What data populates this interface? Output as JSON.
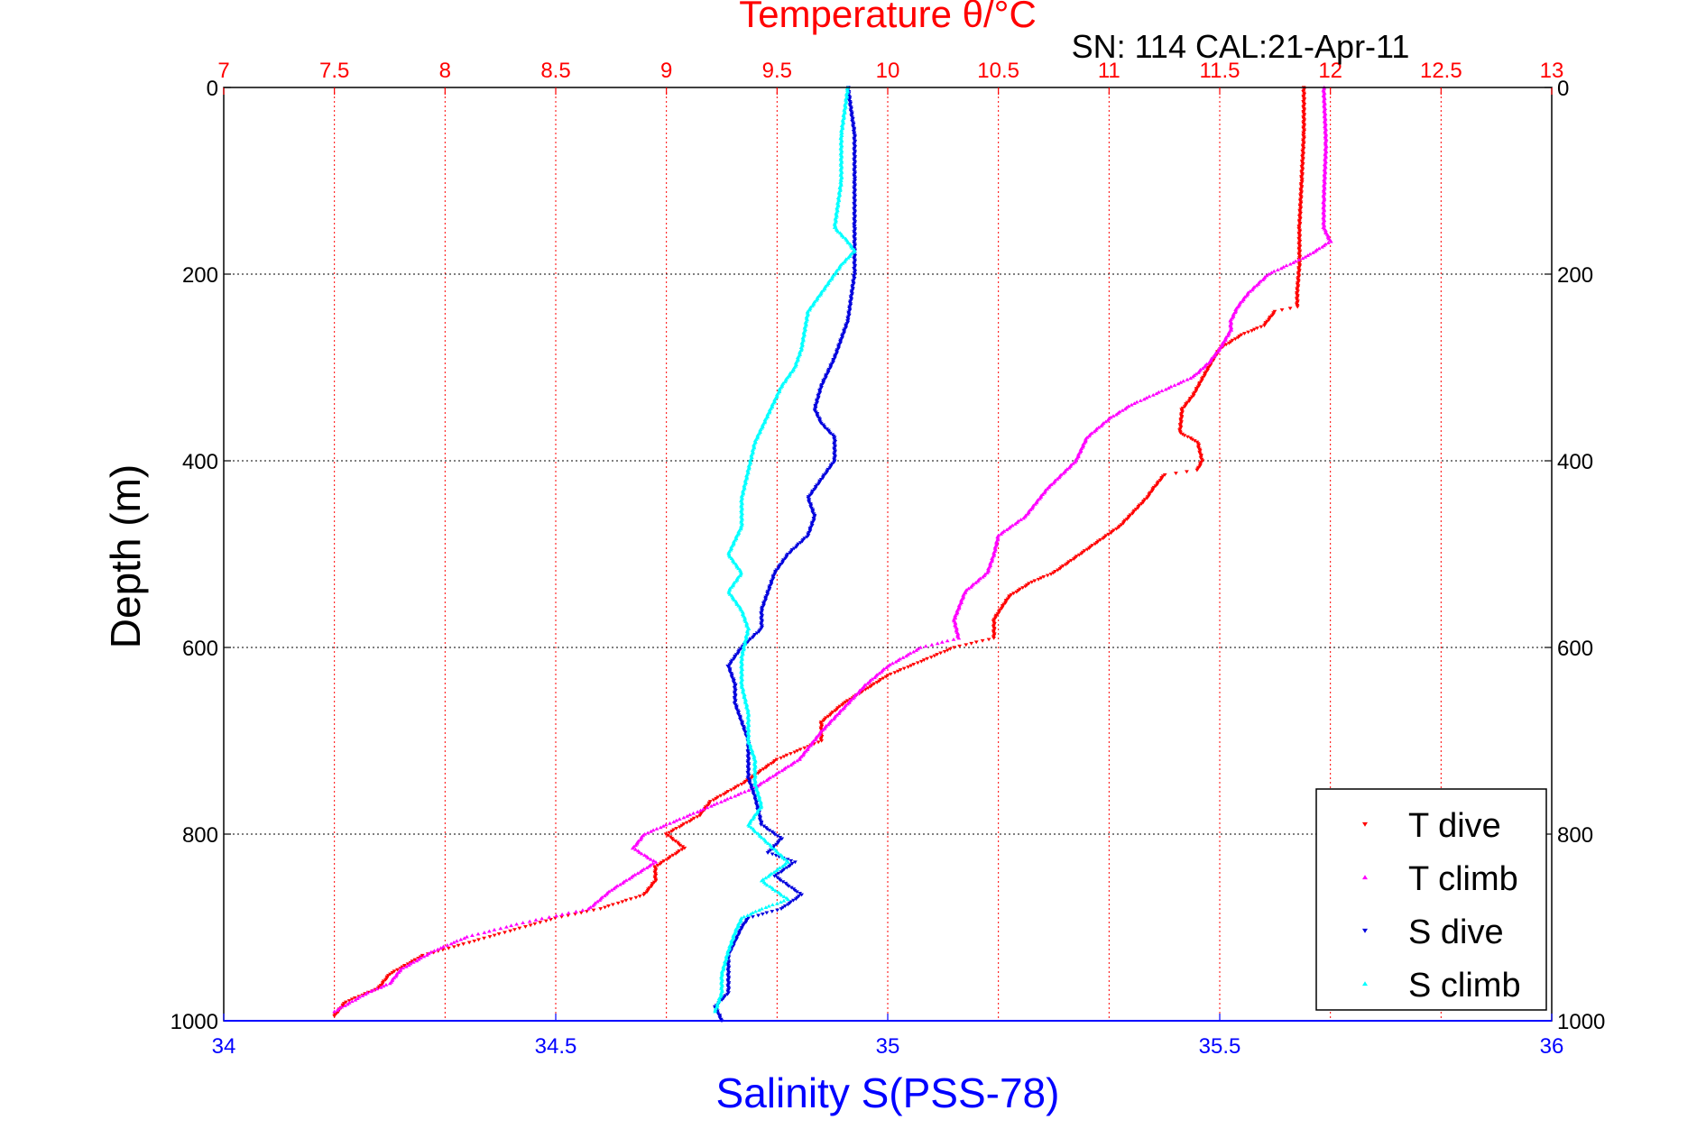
{
  "chart_data": {
    "type": "scatter",
    "top_axis_title": "Temperature θ/°C",
    "subtitle": "SN: 114  CAL:21-Apr-11",
    "ylabel": "Depth (m)",
    "xlabel": "Salinity S(PSS-78)",
    "top_axis": {
      "lim": [
        7,
        13
      ],
      "ticks": [
        7,
        7.5,
        8,
        8.5,
        9,
        9.5,
        10,
        10.5,
        11,
        11.5,
        12,
        12.5,
        13
      ],
      "tick_labels": [
        "7",
        "7.5",
        "8",
        "8.5",
        "9",
        "9.5",
        "10",
        "10.5",
        "11",
        "11.5",
        "12",
        "12.5",
        "13"
      ]
    },
    "bottom_axis": {
      "lim": [
        34,
        36
      ],
      "ticks": [
        34,
        34.5,
        35,
        35.5,
        36
      ],
      "tick_labels": [
        "34",
        "34.5",
        "35",
        "35.5",
        "36"
      ]
    },
    "y_axis": {
      "lim": [
        0,
        1000
      ],
      "reversed": true,
      "ticks": [
        0,
        200,
        400,
        600,
        800,
        1000
      ],
      "tick_labels": [
        "0",
        "200",
        "400",
        "600",
        "800",
        "1000"
      ]
    },
    "grid": true,
    "legend_position": "bottom-right",
    "series": [
      {
        "name": "T dive",
        "axis": "temperature",
        "color": "#ff0000",
        "marker": "triangle-down",
        "points": [
          [
            11.88,
            0
          ],
          [
            11.88,
            50
          ],
          [
            11.87,
            100
          ],
          [
            11.86,
            150
          ],
          [
            11.86,
            190
          ],
          [
            11.85,
            220
          ],
          [
            11.85,
            235
          ],
          [
            11.75,
            240
          ],
          [
            11.7,
            255
          ],
          [
            11.6,
            265
          ],
          [
            11.5,
            280
          ],
          [
            11.45,
            300
          ],
          [
            11.38,
            330
          ],
          [
            11.33,
            345
          ],
          [
            11.32,
            370
          ],
          [
            11.4,
            380
          ],
          [
            11.42,
            400
          ],
          [
            11.4,
            410
          ],
          [
            11.25,
            415
          ],
          [
            11.2,
            430
          ],
          [
            11.17,
            440
          ],
          [
            11.05,
            470
          ],
          [
            10.9,
            495
          ],
          [
            10.75,
            520
          ],
          [
            10.65,
            530
          ],
          [
            10.55,
            545
          ],
          [
            10.48,
            570
          ],
          [
            10.48,
            590
          ],
          [
            10.3,
            600
          ],
          [
            10.0,
            630
          ],
          [
            9.9,
            645
          ],
          [
            9.8,
            660
          ],
          [
            9.7,
            680
          ],
          [
            9.7,
            700
          ],
          [
            9.5,
            720
          ],
          [
            9.35,
            745
          ],
          [
            9.2,
            765
          ],
          [
            9.15,
            780
          ],
          [
            9.0,
            800
          ],
          [
            9.08,
            815
          ],
          [
            8.95,
            835
          ],
          [
            8.95,
            850
          ],
          [
            8.9,
            865
          ],
          [
            8.7,
            880
          ],
          [
            8.5,
            890
          ],
          [
            8.2,
            910
          ],
          [
            7.9,
            930
          ],
          [
            7.75,
            950
          ],
          [
            7.7,
            965
          ],
          [
            7.55,
            980
          ],
          [
            7.5,
            995
          ]
        ]
      },
      {
        "name": "T climb",
        "axis": "temperature",
        "color": "#ff00ff",
        "marker": "triangle-up",
        "points": [
          [
            11.97,
            0
          ],
          [
            11.98,
            60
          ],
          [
            11.97,
            120
          ],
          [
            11.97,
            150
          ],
          [
            12.0,
            165
          ],
          [
            11.9,
            180
          ],
          [
            11.72,
            200
          ],
          [
            11.63,
            220
          ],
          [
            11.58,
            235
          ],
          [
            11.55,
            250
          ],
          [
            11.55,
            260
          ],
          [
            11.5,
            280
          ],
          [
            11.45,
            295
          ],
          [
            11.38,
            310
          ],
          [
            11.1,
            340
          ],
          [
            11.0,
            355
          ],
          [
            10.9,
            375
          ],
          [
            10.85,
            400
          ],
          [
            10.72,
            430
          ],
          [
            10.62,
            460
          ],
          [
            10.5,
            480
          ],
          [
            10.48,
            500
          ],
          [
            10.45,
            520
          ],
          [
            10.35,
            540
          ],
          [
            10.3,
            570
          ],
          [
            10.32,
            590
          ],
          [
            10.15,
            600
          ],
          [
            10.0,
            620
          ],
          [
            9.9,
            640
          ],
          [
            9.8,
            665
          ],
          [
            9.7,
            690
          ],
          [
            9.6,
            720
          ],
          [
            9.4,
            750
          ],
          [
            9.2,
            770
          ],
          [
            9.0,
            790
          ],
          [
            8.9,
            800
          ],
          [
            8.85,
            815
          ],
          [
            8.95,
            830
          ],
          [
            8.85,
            845
          ],
          [
            8.75,
            860
          ],
          [
            8.65,
            880
          ],
          [
            8.35,
            895
          ],
          [
            8.1,
            910
          ],
          [
            7.95,
            925
          ],
          [
            7.8,
            945
          ],
          [
            7.75,
            960
          ],
          [
            7.65,
            970
          ],
          [
            7.5,
            990
          ]
        ]
      },
      {
        "name": "S dive",
        "axis": "salinity",
        "color": "#0000dd",
        "marker": "triangle-down",
        "points": [
          [
            34.94,
            0
          ],
          [
            34.95,
            50
          ],
          [
            34.95,
            100
          ],
          [
            34.95,
            150
          ],
          [
            34.95,
            200
          ],
          [
            34.94,
            250
          ],
          [
            34.92,
            290
          ],
          [
            34.9,
            320
          ],
          [
            34.89,
            345
          ],
          [
            34.9,
            360
          ],
          [
            34.92,
            375
          ],
          [
            34.92,
            400
          ],
          [
            34.9,
            420
          ],
          [
            34.88,
            440
          ],
          [
            34.89,
            460
          ],
          [
            34.88,
            480
          ],
          [
            34.85,
            500
          ],
          [
            34.83,
            520
          ],
          [
            34.82,
            540
          ],
          [
            34.81,
            560
          ],
          [
            34.81,
            580
          ],
          [
            34.78,
            600
          ],
          [
            34.76,
            620
          ],
          [
            34.77,
            640
          ],
          [
            34.77,
            660
          ],
          [
            34.78,
            680
          ],
          [
            34.79,
            700
          ],
          [
            34.79,
            720
          ],
          [
            34.79,
            740
          ],
          [
            34.8,
            760
          ],
          [
            34.81,
            790
          ],
          [
            34.84,
            805
          ],
          [
            34.82,
            820
          ],
          [
            34.86,
            830
          ],
          [
            34.83,
            845
          ],
          [
            34.87,
            865
          ],
          [
            34.84,
            880
          ],
          [
            34.79,
            890
          ],
          [
            34.78,
            900
          ],
          [
            34.77,
            915
          ],
          [
            34.76,
            930
          ],
          [
            34.76,
            950
          ],
          [
            34.76,
            970
          ],
          [
            34.74,
            985
          ],
          [
            34.75,
            1000
          ]
        ]
      },
      {
        "name": "S climb",
        "axis": "salinity",
        "color": "#00ffff",
        "marker": "triangle-up",
        "points": [
          [
            34.94,
            0
          ],
          [
            34.93,
            50
          ],
          [
            34.93,
            100
          ],
          [
            34.92,
            150
          ],
          [
            34.94,
            165
          ],
          [
            34.95,
            175
          ],
          [
            34.93,
            190
          ],
          [
            34.91,
            210
          ],
          [
            34.88,
            240
          ],
          [
            34.87,
            280
          ],
          [
            34.86,
            300
          ],
          [
            34.84,
            320
          ],
          [
            34.82,
            350
          ],
          [
            34.8,
            380
          ],
          [
            34.79,
            410
          ],
          [
            34.78,
            440
          ],
          [
            34.78,
            470
          ],
          [
            34.76,
            500
          ],
          [
            34.78,
            520
          ],
          [
            34.76,
            540
          ],
          [
            34.78,
            560
          ],
          [
            34.79,
            580
          ],
          [
            34.78,
            610
          ],
          [
            34.78,
            640
          ],
          [
            34.79,
            670
          ],
          [
            34.79,
            700
          ],
          [
            34.8,
            720
          ],
          [
            34.8,
            745
          ],
          [
            34.81,
            770
          ],
          [
            34.79,
            790
          ],
          [
            34.82,
            810
          ],
          [
            34.85,
            830
          ],
          [
            34.81,
            850
          ],
          [
            34.85,
            870
          ],
          [
            34.81,
            880
          ],
          [
            34.78,
            890
          ],
          [
            34.77,
            905
          ],
          [
            34.76,
            925
          ],
          [
            34.75,
            950
          ],
          [
            34.75,
            970
          ],
          [
            34.74,
            990
          ]
        ]
      }
    ]
  }
}
